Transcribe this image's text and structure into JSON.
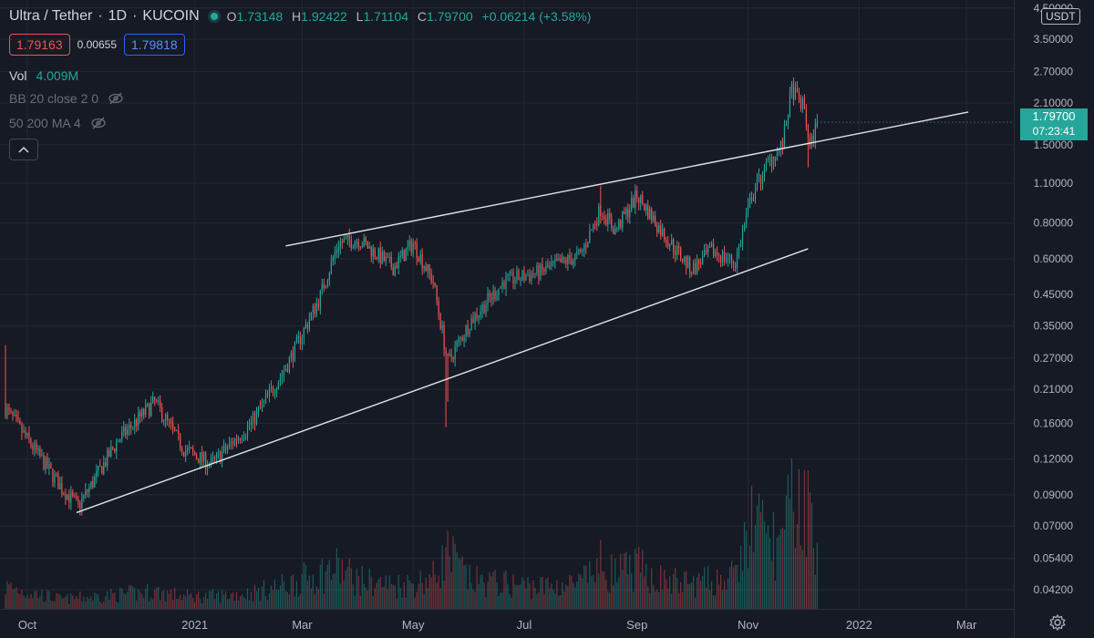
{
  "header": {
    "symbol": "Ultra / Tether",
    "interval": "1D",
    "exchange": "KUCOIN",
    "separator": "·",
    "o_label": "O",
    "o_value": "1.73148",
    "h_label": "H",
    "h_value": "1.92422",
    "l_label": "L",
    "l_value": "1.71104",
    "c_label": "C",
    "c_value": "1.79700",
    "change": "+0.06214 (+3.58%)"
  },
  "quote": {
    "bid": "1.79163",
    "spread": "0.00655",
    "ask": "1.79818"
  },
  "indicators": {
    "vol_label": "Vol",
    "vol_value": "4.009M",
    "bb_label": "BB 20 close 2 0",
    "ma_label": "50 200 MA 4"
  },
  "price_axis": {
    "currency": "USDT",
    "last_price": "1.79700",
    "countdown": "07:23:41"
  },
  "icons": {
    "visibility": "eye-crossed-icon",
    "collapse": "chevron-up-icon",
    "settings": "gear-icon"
  },
  "colors": {
    "up": "#26a69a",
    "down": "#ef5350",
    "background": "#161a25",
    "grid": "#242833",
    "trendline": "#e0e3eb"
  },
  "chart_data": {
    "type": "candlestick",
    "scale": "log",
    "ylim": [
      0.036,
      4.8
    ],
    "y_ticks": [
      "4.50000",
      "3.50000",
      "2.70000",
      "2.10000",
      "1.50000",
      "1.10000",
      "0.80000",
      "0.60000",
      "0.45000",
      "0.35000",
      "0.27000",
      "0.21000",
      "0.16000",
      "0.12000",
      "0.09000",
      "0.07000",
      "0.05400",
      "0.04200"
    ],
    "x_range": [
      "2020-09-16",
      "2022-03-27"
    ],
    "x_ticks": [
      {
        "label": "Oct",
        "date": "2020-10-01"
      },
      {
        "label": "2021",
        "date": "2021-01-01"
      },
      {
        "label": "Mar",
        "date": "2021-03-01"
      },
      {
        "label": "May",
        "date": "2021-05-01"
      },
      {
        "label": "Jul",
        "date": "2021-07-01"
      },
      {
        "label": "Sep",
        "date": "2021-09-01"
      },
      {
        "label": "Nov",
        "date": "2021-11-01"
      },
      {
        "label": "2022",
        "date": "2022-01-01"
      },
      {
        "label": "Mar",
        "date": "2022-03-01"
      }
    ],
    "anchors": [
      {
        "date": "2020-09-19",
        "price": 0.18,
        "volume": 1.4
      },
      {
        "date": "2020-10-20",
        "price": 0.095,
        "volume": 0.6
      },
      {
        "date": "2020-10-29",
        "price": 0.082,
        "volume": 0.7
      },
      {
        "date": "2020-11-20",
        "price": 0.14,
        "volume": 0.9
      },
      {
        "date": "2020-12-10",
        "price": 0.19,
        "volume": 1.1
      },
      {
        "date": "2020-12-26",
        "price": 0.13,
        "volume": 0.8
      },
      {
        "date": "2021-01-10",
        "price": 0.115,
        "volume": 0.8
      },
      {
        "date": "2021-02-01",
        "price": 0.16,
        "volume": 1.0
      },
      {
        "date": "2021-02-20",
        "price": 0.25,
        "volume": 1.5
      },
      {
        "date": "2021-03-10",
        "price": 0.43,
        "volume": 2.2
      },
      {
        "date": "2021-03-21",
        "price": 0.68,
        "volume": 2.6
      },
      {
        "date": "2021-04-01",
        "price": 0.7,
        "volume": 1.8
      },
      {
        "date": "2021-04-20",
        "price": 0.56,
        "volume": 1.5
      },
      {
        "date": "2021-05-01",
        "price": 0.68,
        "volume": 1.6
      },
      {
        "date": "2021-05-12",
        "price": 0.5,
        "volume": 2.0
      },
      {
        "date": "2021-05-20",
        "price": 0.26,
        "volume": 3.5
      },
      {
        "date": "2021-06-01",
        "price": 0.36,
        "volume": 1.8
      },
      {
        "date": "2021-06-20",
        "price": 0.5,
        "volume": 1.6
      },
      {
        "date": "2021-07-10",
        "price": 0.54,
        "volume": 1.4
      },
      {
        "date": "2021-08-01",
        "price": 0.62,
        "volume": 1.6
      },
      {
        "date": "2021-08-12",
        "price": 0.9,
        "volume": 2.8
      },
      {
        "date": "2021-08-20",
        "price": 0.75,
        "volume": 2.2
      },
      {
        "date": "2021-09-01",
        "price": 1.0,
        "volume": 2.6
      },
      {
        "date": "2021-09-15",
        "price": 0.74,
        "volume": 1.8
      },
      {
        "date": "2021-10-01",
        "price": 0.55,
        "volume": 1.6
      },
      {
        "date": "2021-10-12",
        "price": 0.64,
        "volume": 1.8
      },
      {
        "date": "2021-10-25",
        "price": 0.58,
        "volume": 2.0
      },
      {
        "date": "2021-11-03",
        "price": 1.0,
        "volume": 5.5
      },
      {
        "date": "2021-11-12",
        "price": 1.3,
        "volume": 4.5
      },
      {
        "date": "2021-11-20",
        "price": 1.5,
        "volume": 4.0
      },
      {
        "date": "2021-11-25",
        "price": 2.35,
        "volume": 6.5
      },
      {
        "date": "2021-12-02",
        "price": 2.0,
        "volume": 7.0
      },
      {
        "date": "2021-12-05",
        "price": 1.45,
        "volume": 5.5
      },
      {
        "date": "2021-12-09",
        "price": 1.797,
        "volume": 4.0
      }
    ],
    "trendlines": [
      {
        "from": {
          "date": "2020-10-28",
          "price": 0.078
        },
        "to": {
          "date": "2021-12-04",
          "price": 0.65
        }
      },
      {
        "from": {
          "date": "2021-02-20",
          "price": 0.665
        },
        "to": {
          "date": "2022-03-02",
          "price": 1.95
        }
      }
    ]
  }
}
